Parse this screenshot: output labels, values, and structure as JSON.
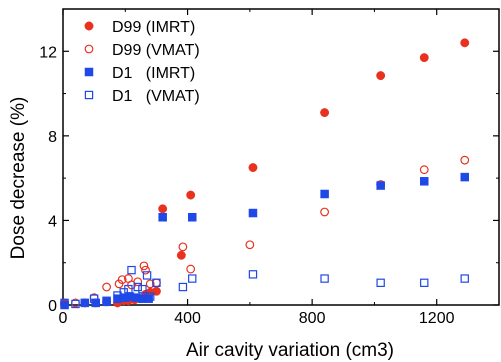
{
  "chart_data": {
    "type": "scatter",
    "title": "",
    "xlabel": "Air cavity variation (cm3)",
    "ylabel": "Dose decrease (%)",
    "xlim": [
      0,
      1400
    ],
    "ylim": [
      0,
      14
    ],
    "xticks": [
      0,
      400,
      800,
      1200
    ],
    "yticks": [
      0,
      4,
      8,
      12
    ],
    "xtick_labels": [
      "0",
      "400",
      "800",
      "1200"
    ],
    "ytick_labels": [
      "0",
      "4",
      "8",
      "12"
    ],
    "grid": false,
    "legend_position": "top-left",
    "series": [
      {
        "name": "D99 (IMRT)",
        "marker": "circle-filled",
        "color": "#e8311f",
        "points": [
          [
            5,
            0.05
          ],
          [
            70,
            0.1
          ],
          [
            105,
            0.1
          ],
          [
            140,
            0.15
          ],
          [
            175,
            0.1
          ],
          [
            195,
            0.2
          ],
          [
            210,
            0.2
          ],
          [
            230,
            0.25
          ],
          [
            250,
            0.3
          ],
          [
            265,
            0.5
          ],
          [
            280,
            0.6
          ],
          [
            300,
            0.65
          ],
          [
            320,
            4.55
          ],
          [
            380,
            2.35
          ],
          [
            410,
            5.2
          ],
          [
            610,
            6.5
          ],
          [
            840,
            9.1
          ],
          [
            1020,
            10.85
          ],
          [
            1160,
            11.7
          ],
          [
            1290,
            12.4
          ]
        ]
      },
      {
        "name": "D99 (VMAT)",
        "marker": "circle-open",
        "color": "#e8311f",
        "points": [
          [
            5,
            0.1
          ],
          [
            40,
            0.1
          ],
          [
            100,
            0.35
          ],
          [
            140,
            0.85
          ],
          [
            180,
            1.0
          ],
          [
            190,
            1.2
          ],
          [
            210,
            1.25
          ],
          [
            220,
            0.95
          ],
          [
            240,
            1.1
          ],
          [
            260,
            1.85
          ],
          [
            265,
            1.65
          ],
          [
            280,
            1.0
          ],
          [
            300,
            1.05
          ],
          [
            385,
            2.75
          ],
          [
            410,
            1.7
          ],
          [
            600,
            2.85
          ],
          [
            840,
            4.4
          ],
          [
            1020,
            5.7
          ],
          [
            1160,
            6.4
          ],
          [
            1290,
            6.85
          ]
        ]
      },
      {
        "name": "D1   (IMRT)",
        "marker": "square-filled",
        "color": "#1f48e8",
        "points": [
          [
            5,
            0.0
          ],
          [
            70,
            0.1
          ],
          [
            105,
            0.1
          ],
          [
            140,
            0.15
          ],
          [
            175,
            0.3
          ],
          [
            200,
            0.35
          ],
          [
            215,
            0.4
          ],
          [
            235,
            0.35
          ],
          [
            255,
            0.3
          ],
          [
            275,
            0.3
          ],
          [
            320,
            4.15
          ],
          [
            415,
            4.15
          ],
          [
            610,
            4.35
          ],
          [
            840,
            5.25
          ],
          [
            1020,
            5.65
          ],
          [
            1160,
            5.85
          ],
          [
            1290,
            6.05
          ]
        ]
      },
      {
        "name": "D1   (VMAT)",
        "marker": "square-open",
        "color": "#1f48e8",
        "points": [
          [
            5,
            0.1
          ],
          [
            40,
            0.05
          ],
          [
            100,
            0.3
          ],
          [
            140,
            0.2
          ],
          [
            175,
            0.45
          ],
          [
            195,
            0.6
          ],
          [
            210,
            0.75
          ],
          [
            220,
            1.65
          ],
          [
            240,
            0.85
          ],
          [
            255,
            0.75
          ],
          [
            270,
            1.4
          ],
          [
            280,
            0.4
          ],
          [
            300,
            1.05
          ],
          [
            385,
            0.85
          ],
          [
            415,
            1.25
          ],
          [
            610,
            1.45
          ],
          [
            840,
            1.25
          ],
          [
            1020,
            1.05
          ],
          [
            1160,
            1.05
          ],
          [
            1290,
            1.25
          ]
        ]
      }
    ]
  }
}
